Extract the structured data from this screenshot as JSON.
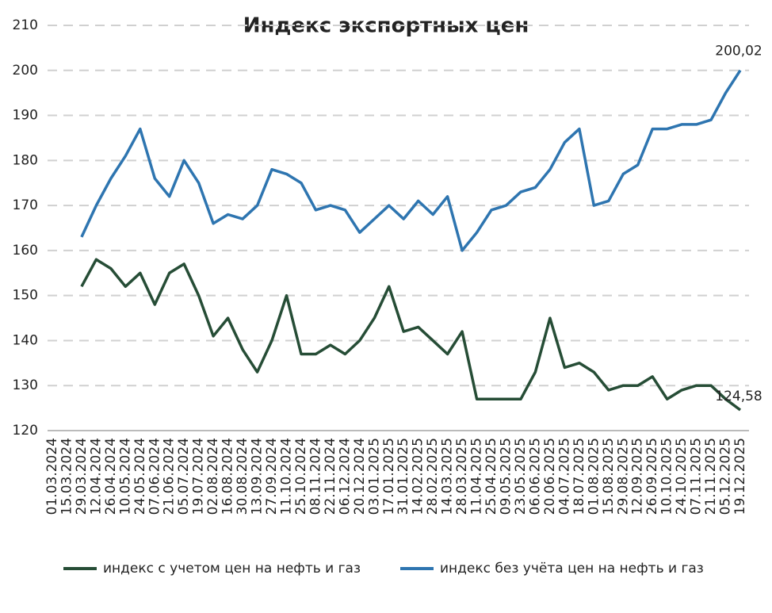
{
  "chart_data": {
    "type": "line",
    "title": "Индекс экспортных цен",
    "categories": [
      "01.03.2024",
      "15.03.2024",
      "29.03.2024",
      "12.04.2024",
      "26.04.2024",
      "10.05.2024",
      "24.05.2024",
      "07.06.2024",
      "21.06.2024",
      "05.07.2024",
      "19.07.2024",
      "02.08.2024",
      "16.08.2024",
      "30.08.2024",
      "13.09.2024",
      "27.09.2024",
      "11.10.2024",
      "25.10.2024",
      "08.11.2024",
      "22.11.2024",
      "06.12.2024",
      "20.12.2024",
      "03.01.2025",
      "17.01.2025",
      "31.01.2025",
      "14.02.2025",
      "28.02.2025",
      "14.03.2025",
      "28.03.2025",
      "11.04.2025",
      "25.04.2025",
      "09.05.2025",
      "23.05.2025",
      "06.06.2025",
      "20.06.2025",
      "04.07.2025",
      "18.07.2025",
      "01.08.2025",
      "15.08.2025",
      "29.08.2025",
      "12.09.2025",
      "26.09.2025",
      "10.10.2025",
      "24.10.2025",
      "07.11.2025",
      "21.11.2025",
      "05.12.2025",
      "19.12.2025"
    ],
    "series": [
      {
        "name": "индекс с учетом цен на нефть и газ",
        "color": "#264d36",
        "values": [
          null,
          null,
          152,
          158,
          156,
          152,
          155,
          148,
          155,
          157,
          150,
          141,
          145,
          138,
          133,
          140,
          150,
          137,
          137,
          139,
          137,
          140,
          145,
          152,
          142,
          143,
          140,
          137,
          142,
          127,
          127,
          127,
          127,
          133,
          145,
          134,
          135,
          133,
          129,
          130,
          130,
          132,
          127,
          129,
          130,
          130,
          127,
          124.58
        ],
        "value_labels": [
          null,
          null,
          null,
          null,
          null,
          null,
          null,
          null,
          null,
          null,
          null,
          null,
          null,
          null,
          null,
          null,
          null,
          null,
          null,
          null,
          null,
          null,
          null,
          null,
          null,
          null,
          null,
          null,
          null,
          null,
          null,
          null,
          null,
          null,
          null,
          null,
          null,
          null,
          null,
          null,
          null,
          null,
          null,
          null,
          null,
          null,
          null,
          "124,58"
        ]
      },
      {
        "name": "индекс без учёта цен на нефть и газ",
        "color": "#2e75b0",
        "values": [
          null,
          null,
          163,
          170,
          176,
          181,
          187,
          176,
          172,
          180,
          175,
          166,
          168,
          167,
          170,
          178,
          177,
          175,
          169,
          170,
          169,
          164,
          167,
          170,
          167,
          171,
          168,
          172,
          160,
          164,
          169,
          170,
          173,
          174,
          178,
          184,
          187,
          170,
          171,
          177,
          179,
          187,
          187,
          188,
          188,
          189,
          195,
          200.02
        ],
        "value_labels": [
          null,
          null,
          null,
          null,
          null,
          null,
          null,
          null,
          null,
          null,
          null,
          null,
          null,
          null,
          null,
          null,
          null,
          null,
          null,
          null,
          null,
          null,
          null,
          null,
          null,
          null,
          null,
          null,
          null,
          null,
          null,
          null,
          null,
          null,
          null,
          null,
          null,
          null,
          null,
          null,
          null,
          null,
          null,
          null,
          null,
          null,
          null,
          "200,02"
        ]
      }
    ],
    "ylim": [
      120,
      210
    ],
    "yticks": [
      120,
      130,
      140,
      150,
      160,
      170,
      180,
      190,
      200,
      210
    ],
    "grid": true
  }
}
